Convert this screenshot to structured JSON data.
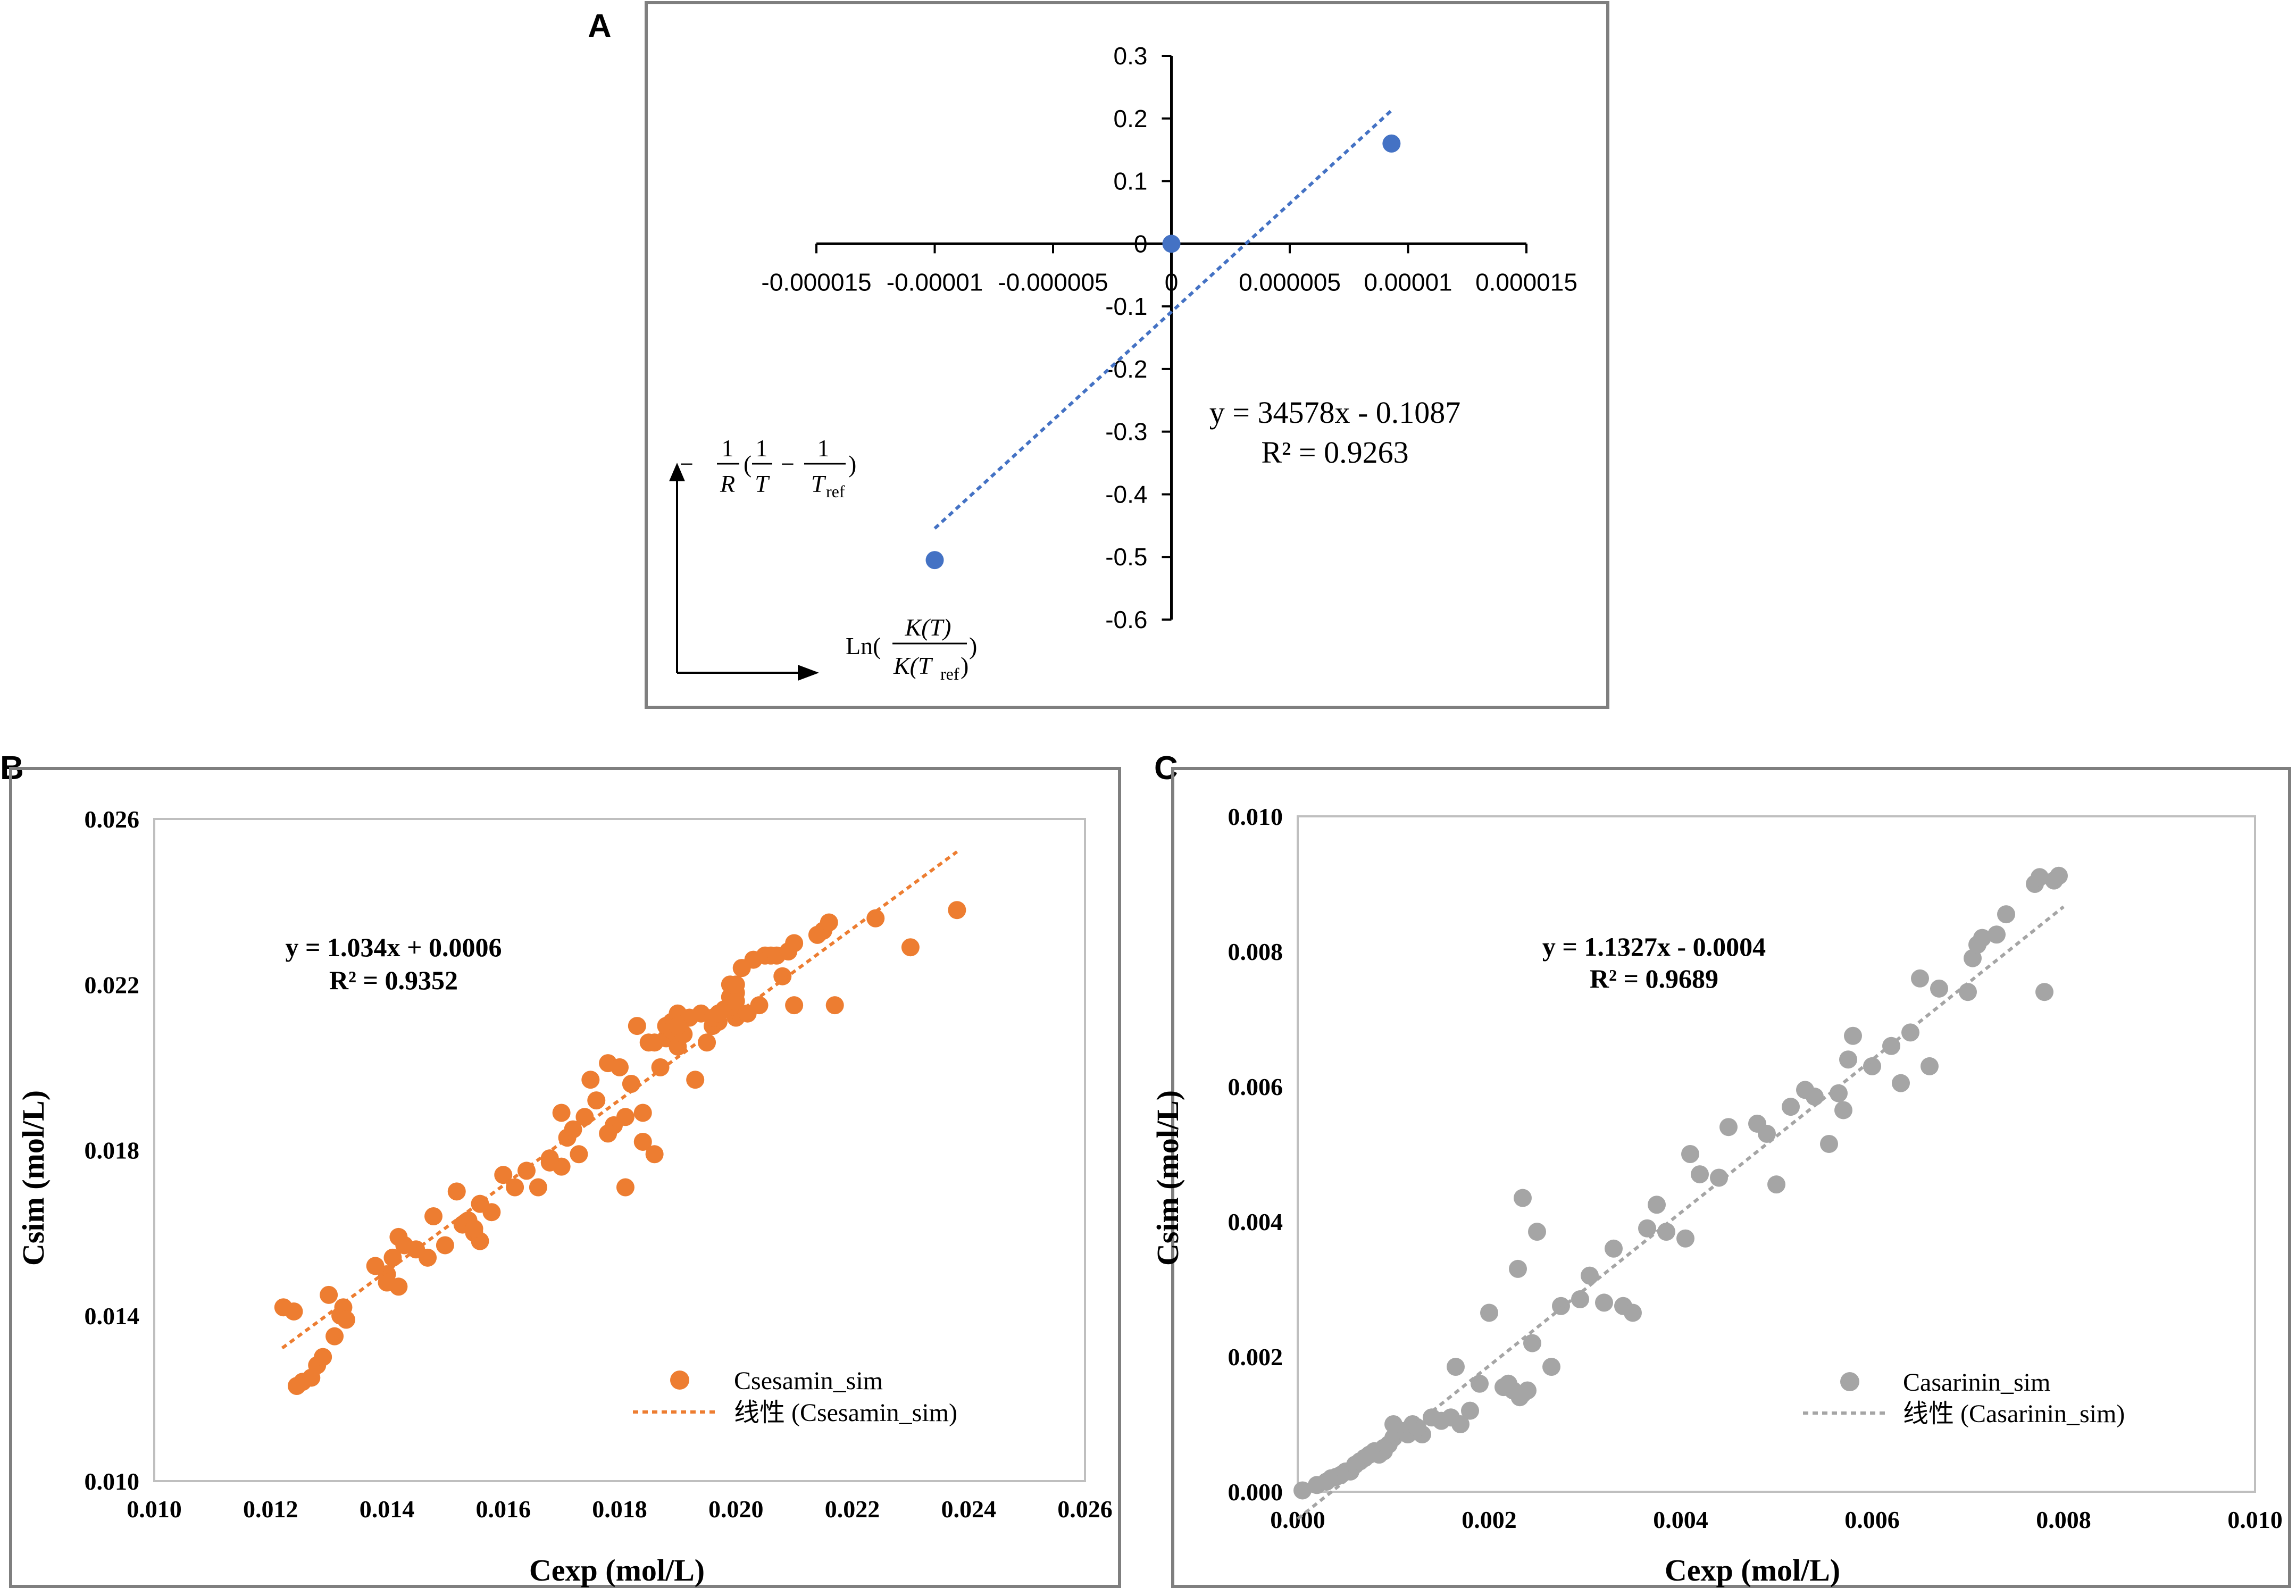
{
  "panels": {
    "A": "A",
    "B": "B",
    "C": "C"
  },
  "colors": {
    "panelA_points": "#4472C4",
    "panelA_trend": "#4472C4",
    "panelB_points": "#ED7D31",
    "panelB_trend": "#ED7D31",
    "panelC_points": "#A5A5A5",
    "panelC_trend": "#A5A5A5",
    "frame": "#7f7f7f",
    "axis": "#000000"
  },
  "chart_data": [
    {
      "id": "A",
      "type": "scatter",
      "title": "",
      "xlim": [
        -1.5e-05,
        1.5e-05
      ],
      "ylim": [
        -0.6,
        0.3
      ],
      "x_ticks": [
        "-0.000015",
        "-0.00001",
        "-0.000005",
        "0",
        "0.000005",
        "0.00001",
        "0.000015"
      ],
      "x_tick_values": [
        -1.5e-05,
        -1e-05,
        -5e-06,
        0,
        5e-06,
        1e-05,
        1.5e-05
      ],
      "y_ticks": [
        "0.3",
        "0.2",
        "0.1",
        "0",
        "-0.1",
        "-0.2",
        "-0.3",
        "-0.4",
        "-0.5",
        "-0.6"
      ],
      "y_tick_values": [
        0.3,
        0.2,
        0.1,
        0,
        -0.1,
        -0.2,
        -0.3,
        -0.4,
        -0.5,
        -0.6
      ],
      "points": {
        "x": [
          -1e-05,
          0,
          9.3e-06
        ],
        "y": [
          -0.505,
          0,
          0.16
        ]
      },
      "trendline": {
        "slope": 34578,
        "intercept": -0.1087,
        "x_range": [
          -1e-05,
          9.3e-06
        ]
      },
      "equation": "y = 34578x - 0.1087",
      "r2": "R² = 0.9263",
      "axis_note_y": {
        "minus": "−",
        "one": "1",
        "R": "R",
        "T": "T",
        "Tref_T": "T",
        "Tref_sub": "ref"
      },
      "axis_note_x": {
        "ln": "Ln(",
        "num": "K(T)",
        "den_K": "K(T",
        "den_sub": "ref",
        "den_close": ")",
        "close": ")"
      }
    },
    {
      "id": "B",
      "type": "scatter",
      "title": "",
      "xlabel": "Cexp (mol/L)",
      "ylabel": "Csim (mol/L)",
      "xlim": [
        0.01,
        0.026
      ],
      "ylim": [
        0.01,
        0.026
      ],
      "x_ticks": [
        "0.010",
        "0.012",
        "0.014",
        "0.016",
        "0.018",
        "0.020",
        "0.022",
        "0.024",
        "0.026"
      ],
      "x_tick_values": [
        0.01,
        0.012,
        0.014,
        0.016,
        0.018,
        0.02,
        0.022,
        0.024,
        0.026
      ],
      "y_ticks": [
        "0.010",
        "0.014",
        "0.018",
        "0.022",
        "0.026"
      ],
      "y_tick_values": [
        0.01,
        0.014,
        0.018,
        0.022,
        0.026
      ],
      "series": [
        {
          "name": "Csesamin_sim",
          "x": [
            0.01222,
            0.0124,
            0.01245,
            0.01255,
            0.0127,
            0.0128,
            0.0129,
            0.013,
            0.0131,
            0.0132,
            0.01325,
            0.0138,
            0.014,
            0.0141,
            0.0142,
            0.0142,
            0.0143,
            0.0145,
            0.0148,
            0.015,
            0.0152,
            0.0154,
            0.0153,
            0.0155,
            0.0156,
            0.0156,
            0.0158,
            0.016,
            0.0162,
            0.0164,
            0.0166,
            0.0168,
            0.017,
            0.017,
            0.0171,
            0.0172,
            0.0173,
            0.0174,
            0.0175,
            0.0176,
            0.0178,
            0.0179,
            0.018,
            0.0181,
            0.0182,
            0.0183,
            0.0184,
            0.0185,
            0.0186,
            0.0187,
            0.0188,
            0.0188,
            0.0189,
            0.0189,
            0.019,
            0.019,
            0.0191,
            0.0192,
            0.0193,
            0.0194,
            0.0195,
            0.0196,
            0.0197,
            0.0198,
            0.0199,
            0.0199,
            0.02,
            0.02,
            0.0201,
            0.0202,
            0.0203,
            0.0204,
            0.0205,
            0.0206,
            0.0207,
            0.0208,
            0.0209,
            0.021,
            0.021,
            0.0214,
            0.0215,
            0.0216,
            0.0217,
            0.0224,
            0.023,
            0.0238,
            0.0196,
            0.02,
            0.019,
            0.0184,
            0.0181,
            0.0186,
            0.02,
            0.0197,
            0.0133,
            0.014,
            0.0147,
            0.0155,
            0.0168,
            0.0178
          ],
          "y": [
            0.0142,
            0.0141,
            0.0123,
            0.0124,
            0.0125,
            0.0128,
            0.013,
            0.0145,
            0.0135,
            0.014,
            0.0142,
            0.0152,
            0.015,
            0.0154,
            0.0147,
            0.0159,
            0.0157,
            0.0156,
            0.0164,
            0.0157,
            0.017,
            0.0163,
            0.0162,
            0.016,
            0.0158,
            0.0167,
            0.0165,
            0.0174,
            0.0171,
            0.0175,
            0.0171,
            0.0178,
            0.0176,
            0.0189,
            0.0183,
            0.0185,
            0.0179,
            0.0188,
            0.0197,
            0.0192,
            0.0201,
            0.0186,
            0.02,
            0.0171,
            0.0196,
            0.021,
            0.0182,
            0.0206,
            0.0179,
            0.02,
            0.0207,
            0.021,
            0.0211,
            0.0209,
            0.0205,
            0.0213,
            0.0208,
            0.0212,
            0.0197,
            0.0213,
            0.0206,
            0.021,
            0.0211,
            0.0214,
            0.022,
            0.0217,
            0.0212,
            0.0218,
            0.0224,
            0.0213,
            0.0226,
            0.0215,
            0.0227,
            0.0227,
            0.0227,
            0.0222,
            0.0228,
            0.023,
            0.0215,
            0.0232,
            0.0233,
            0.0235,
            0.0215,
            0.0236,
            0.0229,
            0.0238,
            0.0212,
            0.0216,
            0.021,
            0.0189,
            0.0188,
            0.0206,
            0.022,
            0.0213,
            0.0139,
            0.0148,
            0.0154,
            0.0161,
            0.0177,
            0.0184
          ]
        }
      ],
      "trendline": {
        "slope": 1.034,
        "intercept": 0.0006,
        "x_range": [
          0.0122,
          0.0238
        ]
      },
      "equation": "y = 1.034x + 0.0006",
      "r2": "R² = 0.9352",
      "legend": {
        "points_label": "Csesamin_sim",
        "trend_label": "线性 (Csesamin_sim)"
      }
    },
    {
      "id": "C",
      "type": "scatter",
      "title": "",
      "xlabel": "Cexp (mol/L)",
      "ylabel": "Csim (mol/L)",
      "xlim": [
        0.0,
        0.01
      ],
      "ylim": [
        0.0,
        0.01
      ],
      "x_ticks": [
        "0.000",
        "0.002",
        "0.004",
        "0.006",
        "0.008",
        "0.010"
      ],
      "x_tick_values": [
        0.0,
        0.002,
        0.004,
        0.006,
        0.008,
        0.01
      ],
      "y_ticks": [
        "0.000",
        "0.002",
        "0.004",
        "0.006",
        "0.008",
        "0.010"
      ],
      "y_tick_values": [
        0.0,
        0.002,
        0.004,
        0.006,
        0.008,
        0.01
      ],
      "series": [
        {
          "name": "Casarinin_sim",
          "x": [
            5e-05,
            0.0002,
            0.0003,
            0.00035,
            0.0004,
            0.00045,
            0.0005,
            0.00055,
            0.0006,
            0.00065,
            0.0007,
            0.00075,
            0.0008,
            0.00085,
            0.0009,
            0.00095,
            0.001,
            0.0011,
            0.00115,
            0.0012,
            0.0013,
            0.0014,
            0.0015,
            0.0016,
            0.0017,
            0.0018,
            0.0019,
            0.002,
            0.00215,
            0.00225,
            0.0023,
            0.00235,
            0.0024,
            0.00245,
            0.0025,
            0.00265,
            0.00275,
            0.00295,
            0.00305,
            0.0032,
            0.0033,
            0.0034,
            0.0035,
            0.00365,
            0.00375,
            0.00385,
            0.00405,
            0.0041,
            0.0042,
            0.0044,
            0.0045,
            0.0048,
            0.0049,
            0.005,
            0.00515,
            0.0053,
            0.0054,
            0.00555,
            0.00565,
            0.0057,
            0.00575,
            0.0058,
            0.006,
            0.0062,
            0.0063,
            0.0064,
            0.0065,
            0.0066,
            0.0067,
            0.007,
            0.00705,
            0.0071,
            0.00715,
            0.0073,
            0.0074,
            0.0077,
            0.00775,
            0.0078,
            0.0079,
            0.00795,
            0.00165,
            0.0009,
            0.0007,
            0.0006,
            0.00125,
            0.00232,
            0.00235,
            0.0022,
            0.001
          ],
          "y": [
            2e-05,
            0.0001,
            0.00015,
            0.0002,
            0.00022,
            0.00025,
            0.0003,
            0.0003,
            0.0004,
            0.00045,
            0.0005,
            0.00055,
            0.0006,
            0.00055,
            0.00065,
            0.0007,
            0.0008,
            0.0009,
            0.00085,
            0.001,
            0.00085,
            0.0011,
            0.00105,
            0.0011,
            0.001,
            0.0012,
            0.0016,
            0.00265,
            0.00155,
            0.0015,
            0.0033,
            0.00435,
            0.0015,
            0.0022,
            0.00385,
            0.00185,
            0.00275,
            0.00285,
            0.0032,
            0.0028,
            0.0036,
            0.00275,
            0.00265,
            0.0039,
            0.00425,
            0.00385,
            0.00375,
            0.005,
            0.0047,
            0.00465,
            0.0054,
            0.00545,
            0.0053,
            0.00455,
            0.0057,
            0.00595,
            0.00585,
            0.00515,
            0.0059,
            0.00565,
            0.0064,
            0.00675,
            0.0063,
            0.0066,
            0.00605,
            0.0068,
            0.0076,
            0.0063,
            0.00745,
            0.0074,
            0.0079,
            0.0081,
            0.0082,
            0.00825,
            0.00855,
            0.009,
            0.0091,
            0.0074,
            0.00905,
            0.00912,
            0.00185,
            0.0006,
            0.0005,
            0.0004,
            0.00095,
            0.0014,
            0.00145,
            0.0016,
            0.001
          ]
        }
      ],
      "trendline": {
        "slope": 1.1327,
        "intercept": -0.0004,
        "x_range": [
          0.0,
          0.008
        ]
      },
      "equation": "y = 1.1327x - 0.0004",
      "r2": "R² = 0.9689",
      "legend": {
        "points_label": "Casarinin_sim",
        "trend_label": "线性 (Casarinin_sim)"
      }
    }
  ]
}
